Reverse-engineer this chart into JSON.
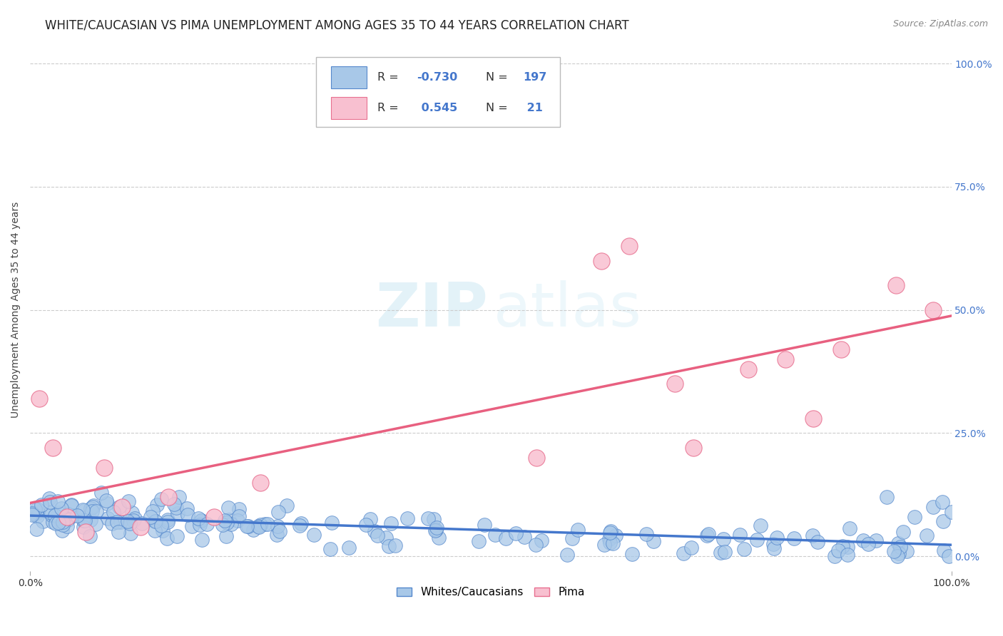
{
  "title": "WHITE/CAUCASIAN VS PIMA UNEMPLOYMENT AMONG AGES 35 TO 44 YEARS CORRELATION CHART",
  "source": "Source: ZipAtlas.com",
  "ylabel": "Unemployment Among Ages 35 to 44 years",
  "watermark_zip": "ZIP",
  "watermark_atlas": "atlas",
  "blue_R": -0.73,
  "blue_N": 197,
  "pink_R": 0.545,
  "pink_N": 21,
  "blue_color": "#a8c8e8",
  "blue_edge_color": "#5588cc",
  "blue_line_color": "#4477cc",
  "pink_color": "#f8c0d0",
  "pink_edge_color": "#e87090",
  "pink_line_color": "#e86080",
  "legend_labels": [
    "Whites/Caucasians",
    "Pima"
  ],
  "ytick_values": [
    0,
    25,
    50,
    75,
    100
  ],
  "xlim": [
    0,
    100
  ],
  "ylim": [
    0,
    100
  ],
  "background_color": "#ffffff",
  "grid_color": "#cccccc",
  "title_fontsize": 12,
  "axis_label_fontsize": 10,
  "right_tick_color": "#4477cc"
}
